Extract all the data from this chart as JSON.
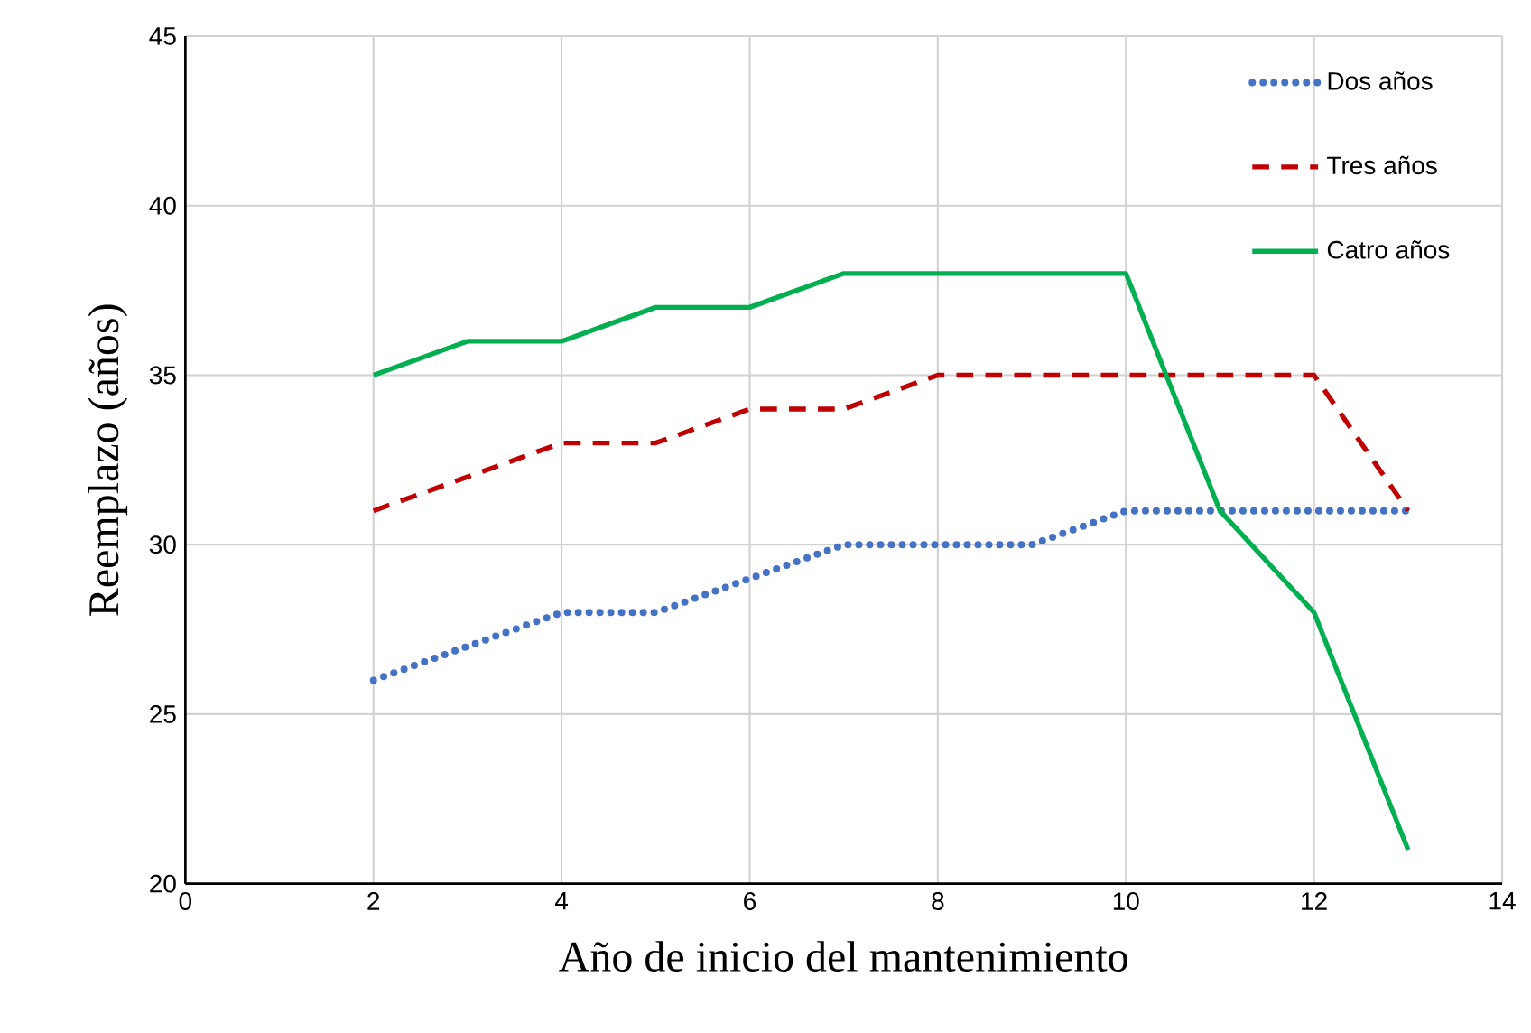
{
  "chart_data": {
    "type": "line",
    "xlabel": "Año de inicio del mantenimiento",
    "ylabel": "Reemplazo (años)",
    "x": [
      2,
      3,
      4,
      5,
      6,
      7,
      8,
      9,
      10,
      11,
      12,
      13
    ],
    "xlim": [
      0,
      14
    ],
    "xticks": [
      0,
      2,
      4,
      6,
      8,
      10,
      12,
      14
    ],
    "ylim": [
      20,
      45
    ],
    "yticks": [
      20,
      25,
      30,
      35,
      40,
      45
    ],
    "grid": true,
    "legend": "top right",
    "marker": "none",
    "series": [
      {
        "name": "Dos años",
        "color": "#4472c4",
        "line_style": "dotted",
        "values": [
          26,
          27,
          28,
          28,
          29,
          30,
          30,
          30,
          31,
          31,
          31,
          31
        ]
      },
      {
        "name": "Tres años",
        "color": "#c00000",
        "line_style": "dashed",
        "values": [
          31,
          32,
          33,
          33,
          34,
          34,
          35,
          35,
          35,
          35,
          35,
          31
        ]
      },
      {
        "name": "Catro años",
        "color": "#00b050",
        "line_style": "solid",
        "values": [
          35,
          36,
          36,
          37,
          37,
          38,
          38,
          38,
          38,
          31,
          28,
          21
        ]
      }
    ]
  }
}
